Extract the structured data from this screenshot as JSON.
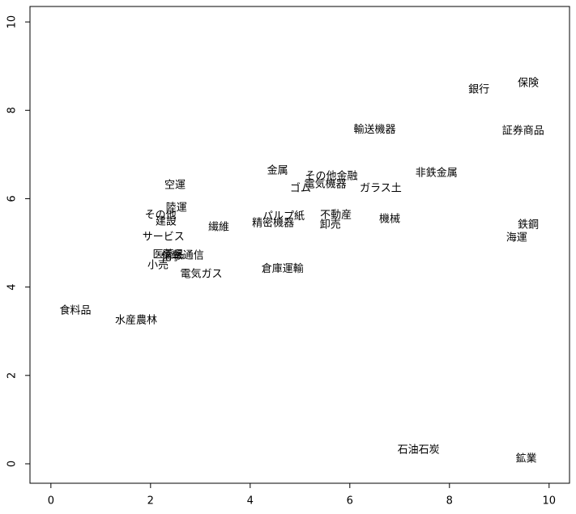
{
  "chart_data": {
    "type": "scatter",
    "labels": [
      "保険",
      "銀行",
      "証券商品",
      "輸送機器",
      "非鉄金属",
      "金属",
      "その他金融",
      "電気機器",
      "ゴム",
      "ガラス土",
      "空運",
      "陸運",
      "その他",
      "建設",
      "パルプ紙",
      "精密機器",
      "不動産",
      "卸売",
      "機械",
      "鉄鋼",
      "海運",
      "繊維",
      "サービス",
      "医薬品",
      "化学",
      "情報通信",
      "小売",
      "電気ガス",
      "倉庫運輸",
      "食料品",
      "水産農林",
      "石油石炭",
      "鉱業"
    ],
    "x": [
      9.58,
      8.59,
      9.48,
      6.5,
      7.74,
      4.55,
      5.63,
      5.51,
      5.01,
      6.62,
      2.49,
      2.52,
      2.2,
      2.31,
      4.67,
      4.46,
      5.72,
      5.61,
      6.8,
      9.58,
      9.35,
      3.37,
      2.26,
      2.36,
      2.42,
      2.65,
      2.15,
      3.02,
      4.65,
      0.49,
      1.71,
      7.38,
      9.54
    ],
    "values": [
      8.61,
      8.46,
      7.53,
      7.56,
      6.58,
      6.63,
      6.5,
      6.32,
      6.23,
      6.23,
      6.3,
      5.79,
      5.62,
      5.48,
      5.6,
      5.44,
      5.62,
      5.4,
      5.53,
      5.4,
      5.11,
      5.35,
      5.13,
      4.73,
      4.67,
      4.71,
      4.49,
      4.29,
      4.41,
      3.46,
      3.24,
      0.31,
      0.11
    ],
    "xlim": [
      -0.42,
      10.41
    ],
    "ylim": [
      -0.44,
      10.35
    ],
    "xticks": [
      0,
      2,
      4,
      6,
      8,
      10
    ],
    "yticks": [
      0,
      2,
      4,
      6,
      8,
      10
    ]
  }
}
